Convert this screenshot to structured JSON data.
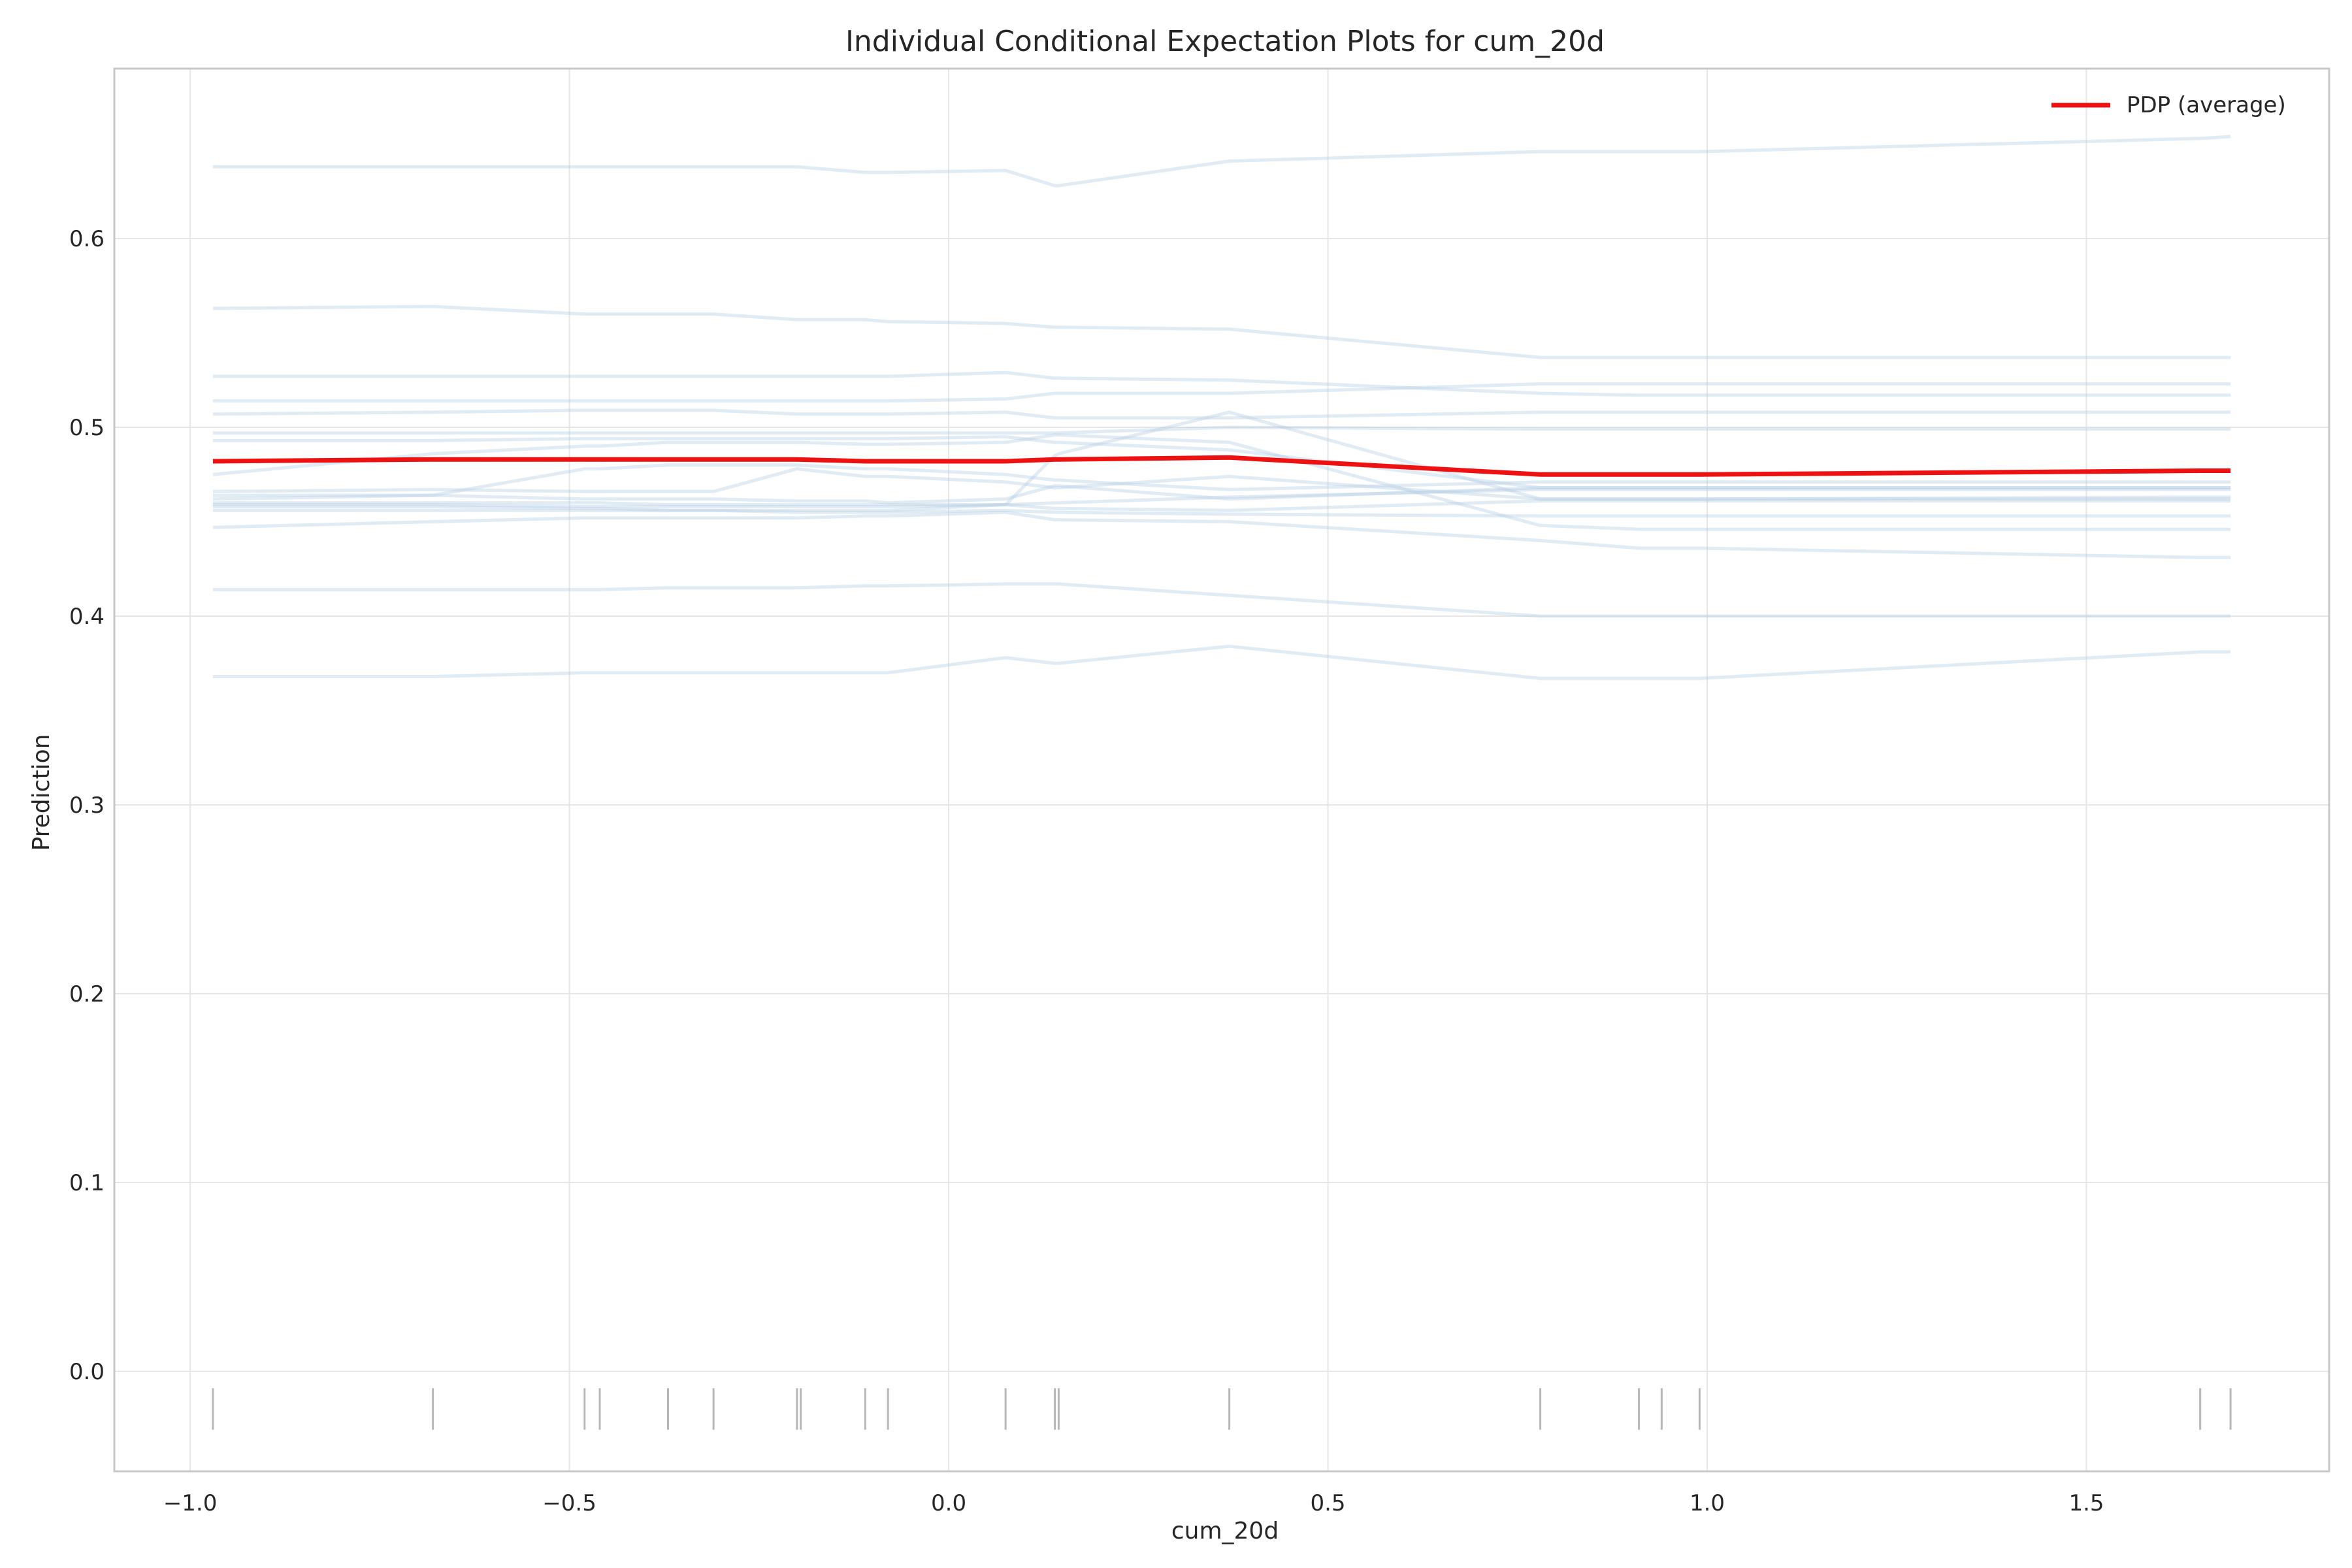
{
  "chart_data": {
    "type": "line",
    "title": "Individual Conditional Expectation Plots for cum_20d",
    "xlabel": "cum_20d",
    "ylabel": "Prediction",
    "xlim": [
      -1.1,
      1.82
    ],
    "ylim": [
      -0.053,
      0.69
    ],
    "xticks": [
      -1.0,
      -0.5,
      0.0,
      0.5,
      1.0,
      1.5
    ],
    "xtick_labels": [
      "−1.0",
      "−0.5",
      "0.0",
      "0.5",
      "1.0",
      "1.5"
    ],
    "yticks": [
      0.0,
      0.1,
      0.2,
      0.3,
      0.4,
      0.5,
      0.6
    ],
    "ytick_labels": [
      "0.0",
      "0.1",
      "0.2",
      "0.3",
      "0.4",
      "0.5",
      "0.6"
    ],
    "grid": true,
    "legend_position": "top-right",
    "colors": {
      "ice": "#b4cde3",
      "pdp": "#ee1111",
      "rug": "#b8b8b8",
      "grid": "#e6e6e6",
      "frame": "#c8c8c8"
    },
    "x": [
      -0.97,
      -0.68,
      -0.48,
      -0.46,
      -0.37,
      -0.31,
      -0.2,
      -0.2,
      -0.11,
      -0.08,
      0.075,
      0.14,
      0.145,
      0.37,
      0.78,
      0.91,
      0.94,
      0.99,
      1.65,
      1.69
    ],
    "rug": [
      -0.97,
      -0.68,
      -0.48,
      -0.46,
      -0.37,
      -0.31,
      -0.2,
      -0.195,
      -0.11,
      -0.08,
      0.075,
      0.14,
      0.145,
      0.37,
      0.78,
      0.91,
      0.94,
      0.99,
      1.65,
      1.69
    ],
    "pdp": {
      "name": "PDP (average)",
      "values": [
        0.482,
        0.483,
        0.483,
        0.483,
        0.483,
        0.483,
        0.483,
        0.483,
        0.482,
        0.482,
        0.482,
        0.483,
        0.483,
        0.484,
        0.475,
        0.475,
        0.475,
        0.475,
        0.477,
        0.477
      ]
    },
    "ice_lines": [
      [
        0.638,
        0.638,
        0.638,
        0.638,
        0.638,
        0.638,
        0.638,
        0.638,
        0.635,
        0.635,
        0.636,
        0.628,
        0.628,
        0.641,
        0.646,
        0.646,
        0.646,
        0.646,
        0.653,
        0.654
      ],
      [
        0.563,
        0.564,
        0.56,
        0.56,
        0.56,
        0.56,
        0.557,
        0.557,
        0.557,
        0.556,
        0.555,
        0.553,
        0.553,
        0.552,
        0.537,
        0.537,
        0.537,
        0.537,
        0.537,
        0.537
      ],
      [
        0.527,
        0.527,
        0.527,
        0.527,
        0.527,
        0.527,
        0.527,
        0.527,
        0.527,
        0.527,
        0.529,
        0.526,
        0.526,
        0.525,
        0.518,
        0.517,
        0.517,
        0.517,
        0.517,
        0.517
      ],
      [
        0.514,
        0.514,
        0.514,
        0.514,
        0.514,
        0.514,
        0.514,
        0.514,
        0.514,
        0.514,
        0.515,
        0.518,
        0.518,
        0.518,
        0.523,
        0.523,
        0.523,
        0.523,
        0.523,
        0.523
      ],
      [
        0.507,
        0.508,
        0.509,
        0.509,
        0.509,
        0.509,
        0.507,
        0.507,
        0.507,
        0.507,
        0.508,
        0.505,
        0.505,
        0.505,
        0.508,
        0.508,
        0.508,
        0.508,
        0.508,
        0.508
      ],
      [
        0.497,
        0.497,
        0.497,
        0.497,
        0.497,
        0.497,
        0.497,
        0.497,
        0.497,
        0.497,
        0.497,
        0.497,
        0.497,
        0.5,
        0.499,
        0.499,
        0.499,
        0.499,
        0.499,
        0.499
      ],
      [
        0.493,
        0.493,
        0.494,
        0.494,
        0.494,
        0.494,
        0.494,
        0.494,
        0.494,
        0.494,
        0.495,
        0.492,
        0.492,
        0.488,
        0.468,
        0.468,
        0.468,
        0.468,
        0.468,
        0.468
      ],
      [
        0.475,
        0.486,
        0.49,
        0.49,
        0.492,
        0.492,
        0.492,
        0.492,
        0.491,
        0.491,
        0.492,
        0.496,
        0.496,
        0.492,
        0.448,
        0.446,
        0.446,
        0.446,
        0.446,
        0.446
      ],
      [
        0.466,
        0.467,
        0.466,
        0.466,
        0.466,
        0.466,
        0.478,
        0.478,
        0.474,
        0.474,
        0.471,
        0.468,
        0.468,
        0.474,
        0.462,
        0.462,
        0.462,
        0.462,
        0.462,
        0.462
      ],
      [
        0.464,
        0.464,
        0.478,
        0.478,
        0.48,
        0.48,
        0.48,
        0.48,
        0.478,
        0.478,
        0.475,
        0.472,
        0.472,
        0.467,
        0.471,
        0.471,
        0.471,
        0.471,
        0.471,
        0.471
      ],
      [
        0.462,
        0.464,
        0.462,
        0.462,
        0.462,
        0.462,
        0.461,
        0.461,
        0.461,
        0.46,
        0.462,
        0.469,
        0.469,
        0.462,
        0.468,
        0.468,
        0.468,
        0.468,
        0.468,
        0.468
      ],
      [
        0.46,
        0.46,
        0.46,
        0.46,
        0.459,
        0.459,
        0.459,
        0.459,
        0.459,
        0.459,
        0.459,
        0.46,
        0.46,
        0.463,
        0.467,
        0.467,
        0.467,
        0.467,
        0.467,
        0.467
      ],
      [
        0.459,
        0.459,
        0.458,
        0.458,
        0.458,
        0.458,
        0.458,
        0.458,
        0.458,
        0.458,
        0.459,
        0.457,
        0.457,
        0.456,
        0.461,
        0.461,
        0.461,
        0.461,
        0.461,
        0.461
      ],
      [
        0.458,
        0.458,
        0.457,
        0.457,
        0.456,
        0.456,
        0.456,
        0.456,
        0.456,
        0.456,
        0.459,
        0.485,
        0.486,
        0.508,
        0.462,
        0.462,
        0.462,
        0.462,
        0.463,
        0.463
      ],
      [
        0.456,
        0.456,
        0.456,
        0.456,
        0.456,
        0.456,
        0.455,
        0.455,
        0.455,
        0.455,
        0.456,
        0.455,
        0.455,
        0.454,
        0.453,
        0.453,
        0.453,
        0.453,
        0.453,
        0.453
      ],
      [
        0.447,
        0.45,
        0.452,
        0.452,
        0.452,
        0.452,
        0.452,
        0.452,
        0.453,
        0.453,
        0.455,
        0.451,
        0.451,
        0.45,
        0.44,
        0.436,
        0.436,
        0.436,
        0.431,
        0.431
      ],
      [
        0.414,
        0.414,
        0.414,
        0.414,
        0.415,
        0.415,
        0.415,
        0.415,
        0.416,
        0.416,
        0.417,
        0.417,
        0.417,
        0.411,
        0.4,
        0.4,
        0.4,
        0.4,
        0.4,
        0.4
      ],
      [
        0.368,
        0.368,
        0.37,
        0.37,
        0.37,
        0.37,
        0.37,
        0.37,
        0.37,
        0.37,
        0.378,
        0.375,
        0.375,
        0.384,
        0.367,
        0.367,
        0.367,
        0.367,
        0.381,
        0.381
      ]
    ]
  }
}
